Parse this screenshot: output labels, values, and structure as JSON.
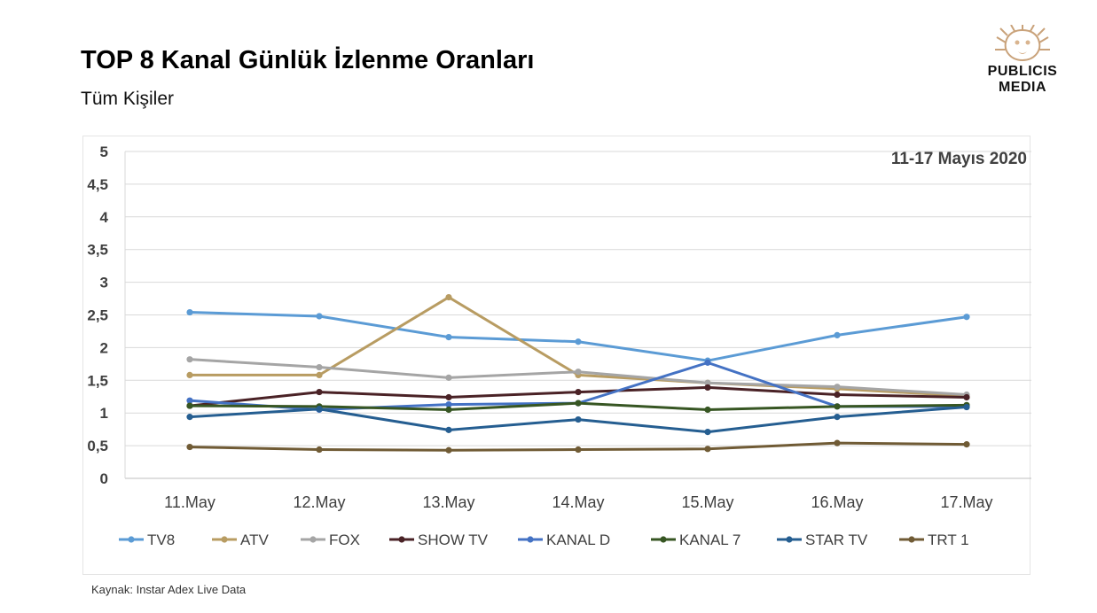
{
  "header": {
    "title": "TOP 8 Kanal Günlük İzlenme Oranları",
    "subtitle": "Tüm Kişiler"
  },
  "logo": {
    "line1": "PUBLICIS",
    "line2": "MEDIA"
  },
  "footer": {
    "source": "Kaynak: Instar  Adex Live Data"
  },
  "chart_data": {
    "type": "line",
    "title": "",
    "annotation": "11-17 Mayıs 2020",
    "xlabel": "",
    "ylabel": "",
    "ylim": [
      0,
      5
    ],
    "yticks": [
      "0",
      "0,5",
      "1",
      "1,5",
      "2",
      "2,5",
      "3",
      "3,5",
      "4",
      "4,5",
      "5"
    ],
    "grid": true,
    "legend_position": "bottom",
    "categories": [
      "11.May",
      "12.May",
      "13.May",
      "14.May",
      "15.May",
      "16.May",
      "17.May"
    ],
    "series": [
      {
        "name": "TV8",
        "color": "#5b9bd5",
        "values": [
          2.54,
          2.48,
          2.16,
          2.09,
          1.8,
          2.19,
          2.47
        ]
      },
      {
        "name": "ATV",
        "color": "#b89c62",
        "values": [
          1.58,
          1.58,
          2.77,
          1.58,
          1.46,
          1.37,
          1.26
        ]
      },
      {
        "name": "FOX",
        "color": "#a5a5a5",
        "values": [
          1.82,
          1.7,
          1.54,
          1.63,
          1.46,
          1.4,
          1.28
        ]
      },
      {
        "name": "SHOW TV",
        "color": "#4a2226",
        "values": [
          1.11,
          1.32,
          1.24,
          1.32,
          1.39,
          1.28,
          1.24
        ]
      },
      {
        "name": "KANAL D",
        "color": "#4472c4",
        "values": [
          1.19,
          1.05,
          1.13,
          1.15,
          1.77,
          1.1,
          1.1
        ]
      },
      {
        "name": "KANAL 7",
        "color": "#375623",
        "values": [
          1.11,
          1.1,
          1.05,
          1.15,
          1.05,
          1.1,
          1.12
        ]
      },
      {
        "name": "STAR TV",
        "color": "#255e91",
        "values": [
          0.94,
          1.06,
          0.74,
          0.9,
          0.71,
          0.94,
          1.09
        ]
      },
      {
        "name": "TRT 1",
        "color": "#705b35",
        "values": [
          0.48,
          0.44,
          0.43,
          0.44,
          0.45,
          0.54,
          0.52
        ]
      }
    ]
  }
}
